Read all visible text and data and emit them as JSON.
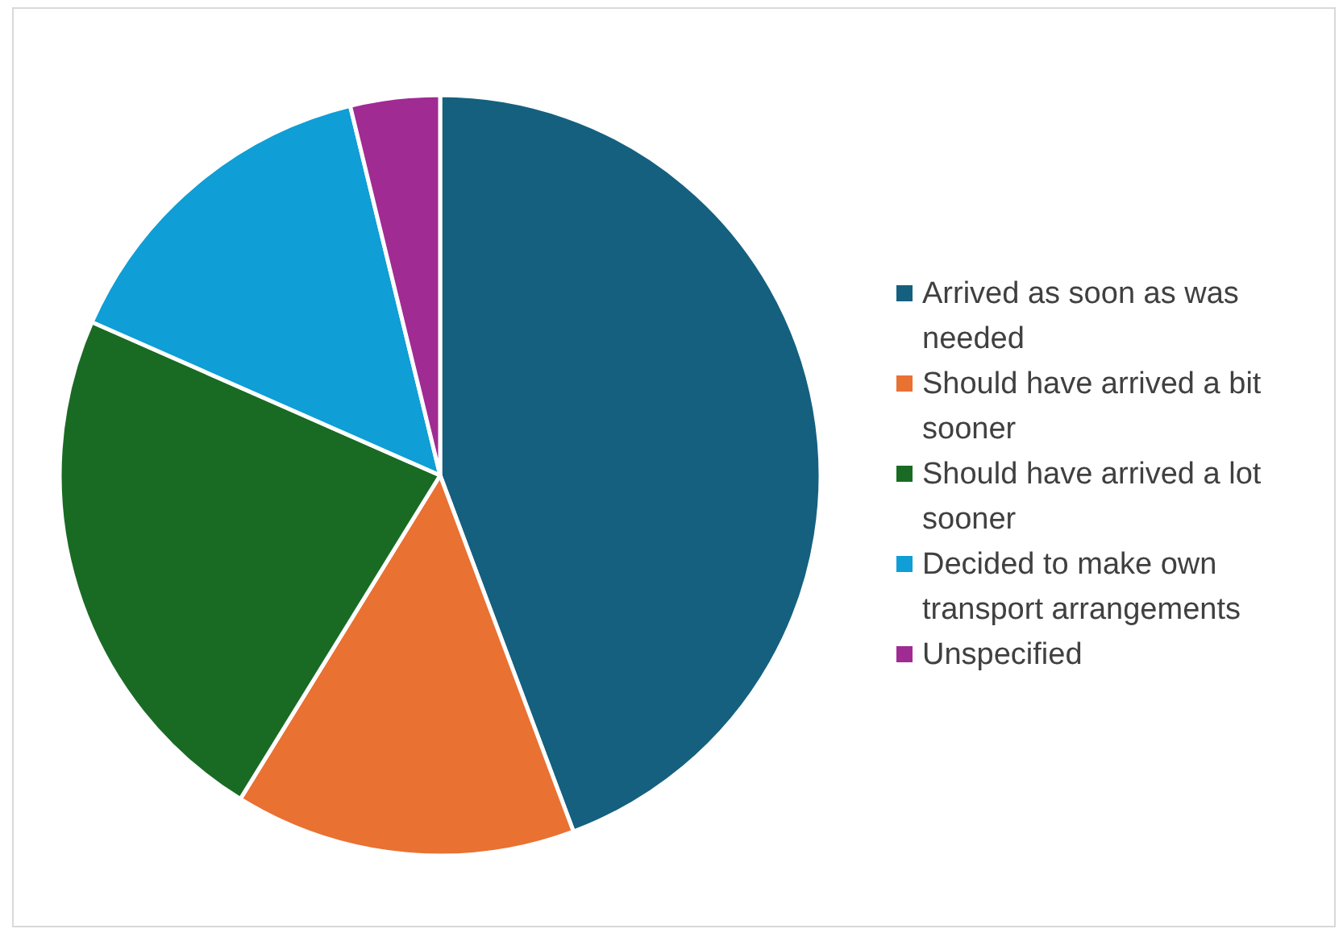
{
  "chart_data": {
    "type": "pie",
    "categories": [
      "Arrived as soon as was needed",
      "Should have arrived a bit sooner",
      "Should have arrived a lot sooner",
      "Decided to make own transport arrangements",
      "Unspecified"
    ],
    "values": [
      44.3,
      14.5,
      22.8,
      14.6,
      3.8
    ],
    "colors": [
      "#15607f",
      "#e97132",
      "#196b24",
      "#0f9ed5",
      "#a02b93"
    ],
    "legend": "right"
  }
}
